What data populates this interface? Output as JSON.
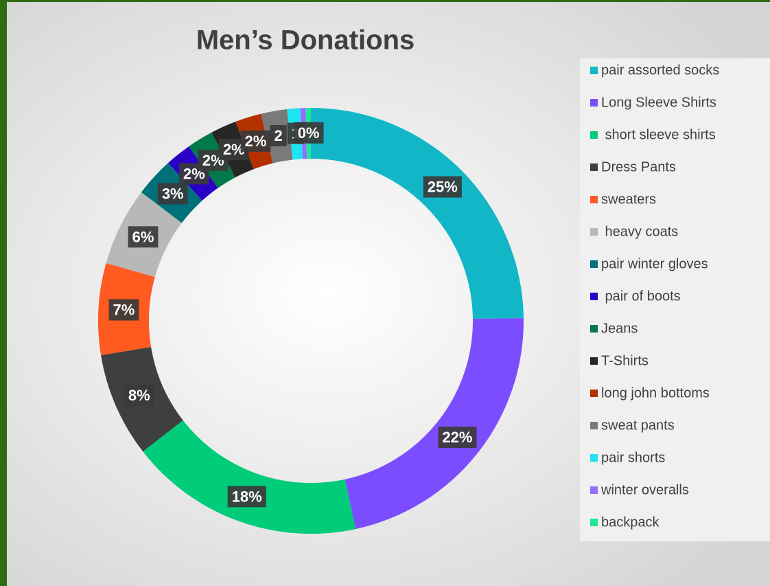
{
  "chart_data": {
    "type": "donut",
    "title": "Men’s Donations",
    "categories": [
      "pair assorted socks",
      "Long Sleeve Shirts",
      " short sleeve shirts",
      "Dress Pants",
      "sweaters",
      " heavy coats",
      "pair winter gloves",
      " pair of boots",
      "Jeans",
      "T-Shirts",
      "long john bottoms",
      "sweat pants",
      "pair shorts",
      "winter overalls",
      "backpack"
    ],
    "values": [
      25,
      22,
      18,
      8,
      7,
      6,
      3,
      2,
      2,
      2,
      2,
      2,
      1,
      0.4,
      0.4
    ],
    "value_labels": [
      "25%",
      "22%",
      "18%",
      "8%",
      "7%",
      "6%",
      "3%",
      "2%",
      "2%",
      "2%",
      "2%",
      "2",
      "1",
      null,
      "0%"
    ],
    "colors": [
      "#12b7c7",
      "#7b4dff",
      "#00cc7a",
      "#3f3f3f",
      "#ff5a1f",
      "#b8b8b8",
      "#00707a",
      "#2a00c8",
      "#007a4a",
      "#262626",
      "#b33000",
      "#7a7a7a",
      "#1de4f2",
      "#9a6bff",
      "#1de89a"
    ],
    "legend": "right"
  }
}
